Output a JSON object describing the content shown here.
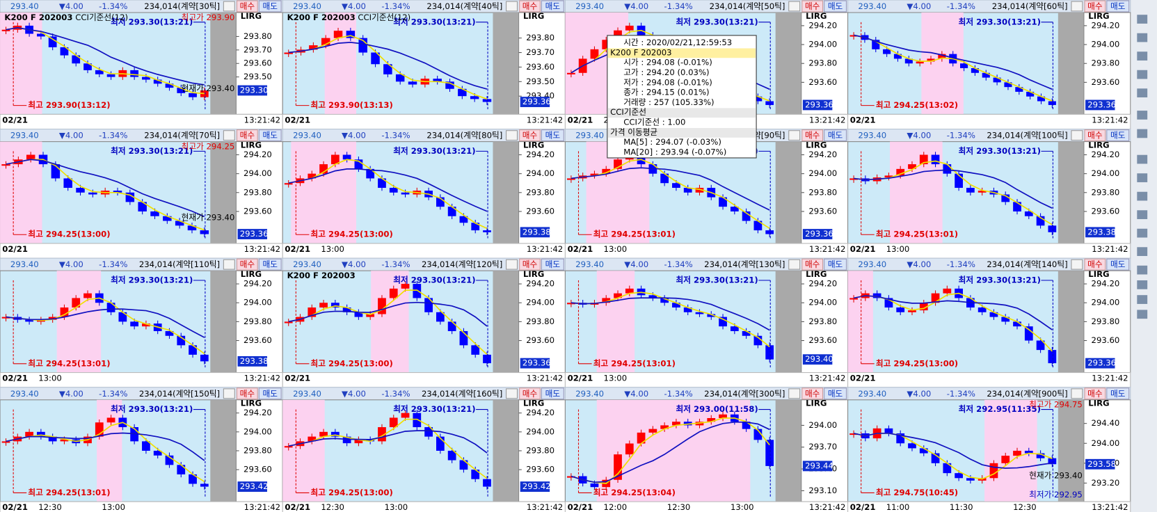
{
  "header": {
    "price": "293.40",
    "change": "▼4.00",
    "pct": "-1.34%",
    "buy": "매수",
    "sell": "매도",
    "date": "02/21",
    "clock": "13:21:42",
    "lirg": "LIRG"
  },
  "panels": [
    {
      "info": "234,014(계약[30틱]",
      "legend": [
        "K200 F 202003",
        "CCI기준선(12)"
      ],
      "ylim": [
        293.25,
        293.95
      ],
      "yticks": [
        {
          "value": 293.8,
          "label": "293.80"
        },
        {
          "value": 293.7,
          "label": "293.70"
        },
        {
          "value": 293.6,
          "label": "293.60"
        },
        {
          "value": 293.5,
          "label": "293.50"
        }
      ],
      "price_box": "293.30",
      "low_label": "최저 293.30(13:21)",
      "high_label": "최고 293.90(13:12)",
      "extra": [
        {
          "text": "최고가 293.90",
          "color": "#e00000"
        },
        {
          "text": "현재가 293.40",
          "color": "#000000"
        }
      ],
      "times": [],
      "pink": [
        0,
        0.2
      ],
      "closes": [
        293.85,
        293.88,
        293.82,
        293.8,
        293.72,
        293.66,
        293.6,
        293.55,
        293.52,
        293.5,
        293.55,
        293.5,
        293.48,
        293.45,
        293.42,
        293.38,
        293.35,
        293.4
      ]
    },
    {
      "info": "234,014(계약[40틱]",
      "legend": [
        "K200 F 202003",
        "CCI기준선(12)"
      ],
      "ylim": [
        293.3,
        293.95
      ],
      "yticks": [
        {
          "value": 293.8,
          "label": "293.80"
        },
        {
          "value": 293.7,
          "label": "293.70"
        },
        {
          "value": 293.6,
          "label": "293.60"
        },
        {
          "value": 293.5,
          "label": "293.50"
        },
        {
          "value": 293.4,
          "label": "293.40"
        }
      ],
      "price_box": "293.36",
      "low_label": "최저 293.30(13:21)",
      "high_label": "최고 293.90(13:13)",
      "extra": [],
      "times": [],
      "pink": [
        0.2,
        0.35
      ],
      "closes": [
        293.7,
        293.72,
        293.75,
        293.8,
        293.85,
        293.8,
        293.7,
        293.62,
        293.55,
        293.5,
        293.48,
        293.52,
        293.5,
        293.45,
        293.4,
        293.38,
        293.36
      ]
    },
    {
      "info": "234,014(계약[50틱]",
      "legend": [],
      "ylim": [
        293.3,
        294.3
      ],
      "yticks": [
        {
          "value": 294.2,
          "label": "294.20"
        },
        {
          "value": 294.0,
          "label": "294.00"
        },
        {
          "value": 293.8,
          "label": "293.80"
        },
        {
          "value": 293.6,
          "label": "293.60"
        }
      ],
      "price_box": "293.36",
      "low_label": "최저 293.30(13:21)",
      "high_label": "",
      "extra": [],
      "times": [
        "2020/02/21"
      ],
      "pink": [
        0,
        0.3
      ],
      "closes": [
        293.7,
        293.85,
        293.95,
        294.05,
        294.15,
        294.2,
        294.1,
        294.0,
        293.9,
        293.8,
        293.7,
        293.65,
        293.6,
        293.55,
        293.5,
        293.45,
        293.4,
        293.36
      ]
    },
    {
      "info": "234,014(계약[60틱]",
      "legend": [],
      "ylim": [
        293.3,
        294.3
      ],
      "yticks": [
        {
          "value": 294.2,
          "label": "294.20"
        },
        {
          "value": 294.0,
          "label": "294.00"
        },
        {
          "value": 293.8,
          "label": "293.80"
        },
        {
          "value": 293.6,
          "label": "293.60"
        }
      ],
      "price_box": "293.36",
      "low_label": "최저 293.30(13:21)",
      "high_label": "최고 294.25(13:02)",
      "extra": [],
      "times": [],
      "pink": [
        0.35,
        0.55
      ],
      "closes": [
        294.1,
        294.05,
        293.95,
        293.9,
        293.85,
        293.8,
        293.82,
        293.85,
        293.9,
        293.8,
        293.75,
        293.7,
        293.65,
        293.6,
        293.55,
        293.5,
        293.45,
        293.4,
        293.36
      ]
    },
    {
      "info": "234,014(계약[70틱]",
      "legend": [],
      "ylim": [
        293.3,
        294.3
      ],
      "yticks": [
        {
          "value": 294.2,
          "label": "294.20"
        },
        {
          "value": 294.0,
          "label": "294.00"
        },
        {
          "value": 293.8,
          "label": "293.80"
        },
        {
          "value": 293.6,
          "label": "293.60"
        }
      ],
      "price_box": "293.36",
      "low_label": "최저 293.30(13:21)",
      "high_label": "최고 294.25(13:00)",
      "extra": [
        {
          "text": "최고가 294.25",
          "color": "#e00000"
        },
        {
          "text": "현재가 293.40",
          "color": "#000000"
        }
      ],
      "times": [],
      "pink": [
        0,
        0.2
      ],
      "closes": [
        294.1,
        294.15,
        294.2,
        294.1,
        293.95,
        293.85,
        293.8,
        293.78,
        293.82,
        293.8,
        293.7,
        293.6,
        293.55,
        293.5,
        293.45,
        293.4,
        293.36
      ]
    },
    {
      "info": "234,014(계약[80틱]",
      "legend": [],
      "ylim": [
        293.3,
        294.3
      ],
      "yticks": [
        {
          "value": 294.2,
          "label": "294.20"
        },
        {
          "value": 294.0,
          "label": "294.00"
        },
        {
          "value": 293.8,
          "label": "293.80"
        },
        {
          "value": 293.6,
          "label": "293.60"
        }
      ],
      "price_box": "293.38",
      "low_label": "최저 293.30(13:21)",
      "high_label": "최고 294.25(13:00)",
      "extra": [],
      "times": [
        "13:00"
      ],
      "pink": [
        0.04,
        0.35
      ],
      "closes": [
        293.9,
        293.95,
        294.0,
        294.1,
        294.2,
        294.15,
        294.05,
        293.95,
        293.85,
        293.8,
        293.78,
        293.82,
        293.75,
        293.65,
        293.55,
        293.48,
        293.4,
        293.38
      ]
    },
    {
      "info": "234,014(계약[90틱]",
      "legend": [],
      "ylim": [
        293.3,
        294.3
      ],
      "yticks": [
        {
          "value": 294.2,
          "label": "294.20"
        },
        {
          "value": 294.0,
          "label": "294.00"
        },
        {
          "value": 293.8,
          "label": "293.80"
        },
        {
          "value": 293.6,
          "label": "293.60"
        }
      ],
      "price_box": "293.36",
      "low_label": "최저 293.30(13:21)",
      "high_label": "최고 294.25(13:01)",
      "extra": [],
      "times": [
        "13:00"
      ],
      "pink": [
        0.1,
        0.4
      ],
      "closes": [
        293.95,
        293.98,
        294.0,
        294.05,
        294.15,
        294.2,
        294.1,
        294.0,
        293.9,
        293.85,
        293.8,
        293.85,
        293.75,
        293.65,
        293.6,
        293.5,
        293.4,
        293.36
      ]
    },
    {
      "info": "234,014(계약[100틱]",
      "legend": [],
      "ylim": [
        293.3,
        294.3
      ],
      "yticks": [
        {
          "value": 294.2,
          "label": "294.20"
        },
        {
          "value": 294.0,
          "label": "294.00"
        },
        {
          "value": 293.8,
          "label": "293.80"
        },
        {
          "value": 293.6,
          "label": "293.60"
        }
      ],
      "price_box": "293.38",
      "low_label": "최저 293.30(13:21)",
      "high_label": "최고 294.25(13:01)",
      "extra": [],
      "times": [
        "13:00"
      ],
      "pink": [
        0.2,
        0.45
      ],
      "closes": [
        293.95,
        293.92,
        293.96,
        293.98,
        294.05,
        294.1,
        294.2,
        294.1,
        294.0,
        293.85,
        293.8,
        293.82,
        293.78,
        293.7,
        293.6,
        293.55,
        293.45,
        293.38
      ]
    },
    {
      "info": "234,014(계약[110틱]",
      "legend": [],
      "ylim": [
        293.3,
        294.3
      ],
      "yticks": [
        {
          "value": 294.2,
          "label": "294.20"
        },
        {
          "value": 294.0,
          "label": "294.00"
        },
        {
          "value": 293.8,
          "label": "293.80"
        },
        {
          "value": 293.6,
          "label": "293.60"
        }
      ],
      "price_box": "293.38",
      "low_label": "최저 293.30(13:21)",
      "high_label": "최고 294.25(13:01)",
      "extra": [],
      "times": [
        "13:00"
      ],
      "pink": [
        0.27,
        0.48
      ],
      "closes": [
        293.85,
        293.82,
        293.8,
        293.82,
        293.85,
        293.95,
        294.05,
        294.1,
        294.0,
        293.9,
        293.8,
        293.75,
        293.78,
        293.7,
        293.65,
        293.55,
        293.45,
        293.38
      ]
    },
    {
      "info": "234,014(계약[120틱]",
      "legend": [
        "K200 F 202003"
      ],
      "ylim": [
        293.3,
        294.3
      ],
      "yticks": [
        {
          "value": 294.2,
          "label": "294.20"
        },
        {
          "value": 294.0,
          "label": "294.00"
        },
        {
          "value": 293.8,
          "label": "293.80"
        },
        {
          "value": 293.6,
          "label": "293.60"
        }
      ],
      "price_box": "293.36",
      "low_label": "최저 293.30(13:21)",
      "high_label": "최고 294.25(13:00)",
      "extra": [],
      "times": [],
      "pink": [
        0.42,
        0.6
      ],
      "closes": [
        293.8,
        293.85,
        293.95,
        294.0,
        293.95,
        293.9,
        293.85,
        293.88,
        294.05,
        294.15,
        294.2,
        294.05,
        293.9,
        293.8,
        293.7,
        293.55,
        293.45,
        293.36
      ]
    },
    {
      "info": "234,014(계약[130틱]",
      "legend": [],
      "ylim": [
        293.3,
        294.3
      ],
      "yticks": [
        {
          "value": 294.2,
          "label": "294.20"
        },
        {
          "value": 294.0,
          "label": "294.00"
        },
        {
          "value": 293.8,
          "label": "293.80"
        },
        {
          "value": 293.6,
          "label": "293.60"
        }
      ],
      "price_box": "293.40",
      "low_label": "최저 293.30(13:21)",
      "high_label": "최고 294.25(13:01)",
      "extra": [],
      "times": [
        "13:00"
      ],
      "pink": [
        0.15,
        0.33
      ],
      "closes": [
        294.0,
        293.98,
        294.0,
        294.05,
        294.1,
        294.15,
        294.08,
        294.05,
        294.0,
        293.95,
        293.9,
        293.88,
        293.85,
        293.75,
        293.7,
        293.65,
        293.55,
        293.4
      ]
    },
    {
      "info": "234,014(계약[140틱]",
      "legend": [],
      "ylim": [
        293.3,
        294.3
      ],
      "yticks": [
        {
          "value": 294.2,
          "label": "294.20"
        },
        {
          "value": 294.0,
          "label": "294.00"
        },
        {
          "value": 293.8,
          "label": "293.80"
        },
        {
          "value": 293.6,
          "label": "293.60"
        }
      ],
      "price_box": "293.36",
      "low_label": "최저 293.30(13:21)",
      "high_label": "최고 294.25(13:00)",
      "extra": [],
      "times": [],
      "pink": [
        0,
        0.12
      ],
      "closes": [
        294.05,
        294.1,
        294.05,
        293.95,
        293.9,
        293.92,
        294.0,
        294.1,
        294.15,
        294.05,
        293.95,
        293.9,
        293.85,
        293.8,
        293.75,
        293.6,
        293.5,
        293.36
      ]
    },
    {
      "info": "234,014(계약[150틱]",
      "legend": [],
      "ylim": [
        293.3,
        294.3
      ],
      "yticks": [
        {
          "value": 294.2,
          "label": "294.20"
        },
        {
          "value": 294.0,
          "label": "294.00"
        },
        {
          "value": 293.8,
          "label": "293.80"
        },
        {
          "value": 293.6,
          "label": "293.60"
        }
      ],
      "price_box": "293.42",
      "low_label": "최저 293.30(13:21)",
      "high_label": "최고 294.25(13:01)",
      "extra": [],
      "times": [
        "12:30",
        "13:00"
      ],
      "pink": [
        0.46,
        0.58
      ],
      "closes": [
        293.9,
        293.95,
        294.0,
        293.95,
        293.9,
        293.92,
        293.88,
        293.95,
        294.1,
        294.15,
        294.05,
        293.9,
        293.8,
        293.75,
        293.65,
        293.55,
        293.45,
        293.42
      ]
    },
    {
      "info": "234,014(계약[160틱]",
      "legend": [],
      "ylim": [
        293.3,
        294.3
      ],
      "yticks": [
        {
          "value": 294.2,
          "label": "294.20"
        },
        {
          "value": 294.0,
          "label": "294.00"
        },
        {
          "value": 293.8,
          "label": "293.80"
        },
        {
          "value": 293.6,
          "label": "293.60"
        }
      ],
      "price_box": "293.42",
      "low_label": "최저 293.30(13:21)",
      "high_label": "최고 294.25(13:00)",
      "extra": [],
      "times": [
        "12:30",
        "13:00"
      ],
      "pink": [
        0,
        0.2
      ],
      "closes": [
        293.85,
        293.9,
        293.95,
        294.0,
        293.95,
        293.88,
        293.92,
        293.9,
        294.05,
        294.15,
        294.2,
        294.05,
        293.95,
        293.8,
        293.7,
        293.6,
        293.5,
        293.42
      ]
    },
    {
      "info": "234,014(계약[300틱]",
      "legend": [],
      "ylim": [
        293.0,
        294.3
      ],
      "yticks": [
        {
          "value": 294.0,
          "label": "294.00"
        },
        {
          "value": 293.7,
          "label": "293.70"
        },
        {
          "value": 293.4,
          "label": "293.40"
        },
        {
          "value": 293.1,
          "label": "293.10"
        }
      ],
      "price_box": "293.44",
      "low_label": "최저 293.00(11:58)",
      "high_label": "최고 294.25(13:04)",
      "extra": [],
      "times": [
        "12:00",
        "12:30",
        "13:00"
      ],
      "pink": [
        0.15,
        0.88
      ],
      "closes": [
        293.3,
        293.2,
        293.15,
        293.25,
        293.6,
        293.75,
        293.9,
        293.95,
        294.0,
        294.05,
        294.0,
        294.05,
        294.1,
        294.15,
        294.05,
        293.95,
        293.8,
        293.44
      ]
    },
    {
      "info": "234,014(계약[900틱]",
      "legend": [],
      "ylim": [
        292.9,
        294.8
      ],
      "yticks": [
        {
          "value": 294.4,
          "label": "294.40"
        },
        {
          "value": 294.0,
          "label": "294.00"
        },
        {
          "value": 293.6,
          "label": "293.60"
        },
        {
          "value": 293.2,
          "label": "293.20"
        }
      ],
      "price_box": "293.58",
      "low_label": "최저 292.95(11:35)",
      "high_label": "최고 294.75(10:45)",
      "extra": [
        {
          "text": "최고가 294.75",
          "color": "#e00000"
        },
        {
          "text": "현재가 293.40",
          "color": "#000000"
        },
        {
          "text": "최저가 292.95",
          "color": "#0000c0"
        }
      ],
      "times": [
        "11:00",
        "11:30",
        "12:30"
      ],
      "pink": [
        0.65,
        0.9
      ],
      "closes": [
        294.2,
        294.1,
        294.3,
        294.2,
        294.0,
        293.9,
        293.8,
        293.6,
        293.4,
        293.3,
        293.25,
        293.3,
        293.6,
        293.75,
        293.85,
        293.8,
        293.7,
        293.58
      ]
    }
  ],
  "tooltip": [
    "시간        : 2020/02/21,12:59:53",
    "K200 F 202003",
    "시가       : 294.08 (-0.01%)",
    "고가       : 294.20 (0.03%)",
    "저가       : 294.08 (-0.01%)",
    "종가       : 294.15 (0.01%)",
    "거래량     : 257 (105.33%)",
    "CCI기준선",
    "CCI기준선  : 1.00",
    "가격 이동평균",
    "MA[5]      : 294.07 (-0.03%)",
    "MA[20]     : 293.94 (-0.07%)"
  ]
}
